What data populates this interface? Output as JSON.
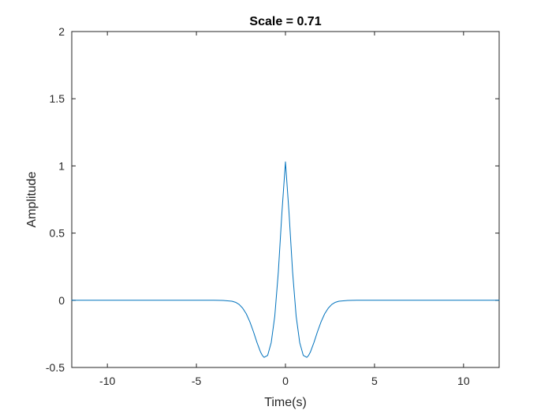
{
  "chart_data": {
    "type": "line",
    "title": "Scale = 0.71",
    "xlabel": "Time(s)",
    "ylabel": "Amplitude",
    "xlim": [
      -12,
      12
    ],
    "ylim": [
      -0.5,
      2
    ],
    "xticks": [
      -10,
      -5,
      0,
      5,
      10
    ],
    "xtick_labels": [
      "-10",
      "-5",
      "0",
      "5",
      "10"
    ],
    "yticks": [
      -0.5,
      0,
      0.5,
      1,
      1.5,
      2
    ],
    "ytick_labels": [
      "-0.5",
      "0",
      "0.5",
      "1",
      "1.5",
      "2"
    ],
    "grid": false,
    "series": [
      {
        "color": "#0072bd",
        "x": [
          -12,
          -4,
          -3.5,
          -3,
          -2.8,
          -2.6,
          -2.4,
          -2.2,
          -2.0,
          -1.8,
          -1.6,
          -1.4,
          -1.3,
          -1.2,
          -1.0,
          -0.8,
          -0.6,
          -0.4,
          -0.2,
          0,
          0.2,
          0.4,
          0.6,
          0.8,
          1.0,
          1.2,
          1.3,
          1.4,
          1.6,
          1.8,
          2.0,
          2.2,
          2.4,
          2.6,
          2.8,
          3.0,
          3.5,
          4,
          12
        ],
        "y": [
          0,
          0,
          -0.001,
          -0.007,
          -0.015,
          -0.031,
          -0.059,
          -0.101,
          -0.16,
          -0.233,
          -0.314,
          -0.385,
          -0.41,
          -0.425,
          -0.41,
          -0.315,
          -0.118,
          0.212,
          0.651,
          1.03,
          0.651,
          0.212,
          -0.118,
          -0.315,
          -0.41,
          -0.425,
          -0.41,
          -0.385,
          -0.314,
          -0.233,
          -0.16,
          -0.101,
          -0.059,
          -0.031,
          -0.015,
          -0.007,
          -0.001,
          0,
          0
        ]
      }
    ]
  }
}
